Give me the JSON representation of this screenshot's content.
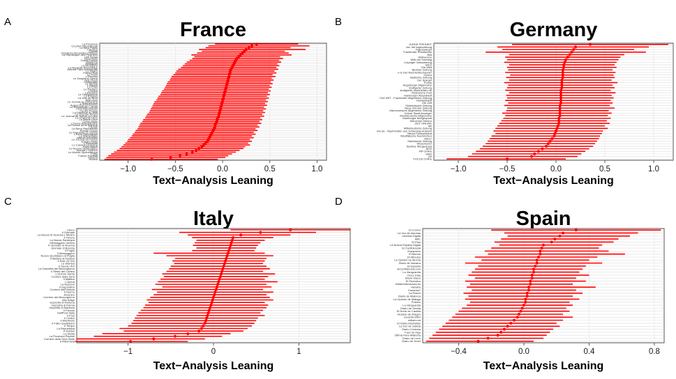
{
  "chart_data": [
    {
      "panel": "A",
      "title": "France",
      "type": "scatter",
      "xlabel": "Text−Analysis Leaning",
      "xlim": [
        -1.3,
        1.1
      ],
      "xticks": [
        -1.0,
        -0.5,
        0.0,
        0.5,
        1.0
      ],
      "xtick_labels": [
        "−1.0",
        "−0.5",
        "0.0",
        "0.5",
        "1.0"
      ],
      "grid": true,
      "labels": [
        "La Provence",
        "Courrier International",
        "Le Bien Public",
        "Causeur",
        "Capital",
        "Dernières Nouvelles d'Alsace",
        "La République des Pyrénées",
        "Les Echos",
        "Nice-Matin",
        "Ouest-France",
        "Marianne",
        "Mediapart",
        "La Montagne",
        "La Nouvelle République",
        "Journal Paris Normandie",
        "Le Figaro",
        "France Soir",
        "Le Point",
        "L'Express",
        "Le Dauphiné Libéré",
        "Sud Ouest",
        "Challenges",
        "Le Monde",
        "L'Alsace",
        "La Croix",
        "Le Parisien",
        "L'Union",
        "Libération",
        "Le Télégramme",
        "Le Progrès",
        "La Voix du Nord",
        "Midi Libre",
        "Le Journal du Dimanche",
        "L'Indépendant",
        "Aujourd'hui en France",
        "Le Républicain Lorrain",
        "L'Est Républicain",
        "Centre Presse",
        "La Dépêche du Midi",
        "Le Courrier Picard",
        "Le Journal de Saône-et-Loire",
        "La Charente Libre",
        "Le Maine Libre",
        "Corse-Matin",
        "L'Yonne Républicaine",
        "La Presse de la Manche",
        "L'Éclair",
        "Le Berry Républicain",
        "Presse Océan",
        "Le Populaire du Centre",
        "L'Écho Républicain",
        "La Marseillaise",
        "Valeurs Actuelles",
        "Le Journal du Centre",
        "Vosges Matin",
        "L'Humanité",
        "Le Canard Enchaîné",
        "Paris Match",
        "Le Nouvel Observateur",
        "Journal L'Opinion",
        "Le Monde Diplomatique",
        "L'Obs",
        "France Football",
        "Présent",
        "Rivarol"
      ],
      "points": [
        0.36,
        0.31,
        0.28,
        0.25,
        0.23,
        0.21,
        0.19,
        0.17,
        0.15,
        0.14,
        0.13,
        0.12,
        0.11,
        0.1,
        0.09,
        0.08,
        0.08,
        0.07,
        0.07,
        0.06,
        0.06,
        0.05,
        0.05,
        0.04,
        0.04,
        0.03,
        0.03,
        0.02,
        0.02,
        0.01,
        0.01,
        0.0,
        0.0,
        -0.01,
        -0.01,
        -0.02,
        -0.02,
        -0.03,
        -0.03,
        -0.04,
        -0.04,
        -0.05,
        -0.06,
        -0.06,
        -0.07,
        -0.08,
        -0.08,
        -0.09,
        -0.1,
        -0.11,
        -0.12,
        -0.13,
        -0.14,
        -0.15,
        -0.16,
        -0.18,
        -0.2,
        -0.22,
        -0.25,
        -0.28,
        -0.32,
        -0.38,
        -0.45,
        -0.55,
        -0.75
      ],
      "lower": [
        -0.08,
        -0.15,
        -0.18,
        -0.25,
        -0.22,
        -0.27,
        -0.33,
        -0.3,
        -0.32,
        -0.35,
        -0.38,
        -0.4,
        -0.42,
        -0.44,
        -0.47,
        -0.49,
        -0.5,
        -0.52,
        -0.54,
        -0.55,
        -0.56,
        -0.58,
        -0.59,
        -0.6,
        -0.61,
        -0.62,
        -0.64,
        -0.65,
        -0.66,
        -0.68,
        -0.69,
        -0.7,
        -0.72,
        -0.73,
        -0.74,
        -0.75,
        -0.76,
        -0.77,
        -0.78,
        -0.8,
        -0.81,
        -0.82,
        -0.84,
        -0.85,
        -0.87,
        -0.88,
        -0.89,
        -0.9,
        -0.92,
        -0.93,
        -0.95,
        -0.96,
        -0.98,
        -1.0,
        -1.01,
        -1.03,
        -1.05,
        -1.07,
        -1.09,
        -1.12,
        -1.15,
        -1.18,
        -1.21,
        -1.23,
        -1.25
      ],
      "upper": [
        0.8,
        0.92,
        0.72,
        0.88,
        0.66,
        0.7,
        0.73,
        0.61,
        0.64,
        0.6,
        0.62,
        0.58,
        0.6,
        0.57,
        0.59,
        0.55,
        0.57,
        0.53,
        0.56,
        0.52,
        0.54,
        0.51,
        0.53,
        0.5,
        0.52,
        0.49,
        0.51,
        0.48,
        0.5,
        0.47,
        0.49,
        0.46,
        0.48,
        0.45,
        0.47,
        0.44,
        0.46,
        0.43,
        0.45,
        0.42,
        0.44,
        0.4,
        0.42,
        0.39,
        0.41,
        0.37,
        0.39,
        0.35,
        0.37,
        0.33,
        0.35,
        0.31,
        0.33,
        0.29,
        0.31,
        0.27,
        0.29,
        0.24,
        0.22,
        0.18,
        0.14,
        0.1,
        0.06,
        0.03,
        -0.05
      ]
    },
    {
      "panel": "B",
      "title": "Germany",
      "type": "scatter",
      "xlabel": "Text−Analysis Leaning",
      "xlim": [
        -1.25,
        1.2
      ],
      "xticks": [
        -1.0,
        -0.5,
        0.0,
        0.5,
        1.0
      ],
      "xtick_labels": [
        "−1.0",
        "−0.5",
        "0.0",
        "0.5",
        "1.0"
      ],
      "grid": true,
      "labels": [
        "JUNGE FREIHEIT",
        "taz. die tageszeitung",
        "Tagesspiegel",
        "Frankfurter Rundschau",
        "Bild",
        "Weltwoche",
        "Welt am Sonntag",
        "Leipziger Volkszeitung",
        "BILD",
        "Die Welt",
        "Berliner Zeitung",
        "n-tv Der Nachrichtensender",
        "Cicero",
        "Badische Zeitung",
        "Der Spiegel",
        "Focus",
        "Augsburger Allgemeine",
        "Stuttgarter Zeitung",
        "stuttgarter-nachrichten.de",
        "Rheinische Post",
        "Hamburger Abendblatt",
        "FAZ.NET - Frankfurter Allgemeine Zeitung",
        "Handelsblatt",
        "Die Zeit",
        "Süddeutsche Zeitung",
        "Neue Zürcher Zeitung",
        "Hannoversche Allgemeine Zeitung",
        "Kölner Stadt-Anzeiger",
        "Westdeutsche Allgemeine",
        "Hamburger Morgenpost",
        "Münchner Merkur",
        "ZEIT ONLINE",
        "taz",
        "Mitteldeutsche Zeitung",
        "shz.de - Nachrichten aus Schleswig-Holstein",
        "Neues Deutschland",
        "Westfälische Nachrichten",
        "WELT",
        "Sächsische Zeitung",
        "Weserkurier",
        "Berliner Morgenpost",
        "NOZ",
        "RP Online",
        "WAZ",
        "jW",
        "FOCUS Online"
      ],
      "points": [
        0.35,
        0.2,
        0.18,
        0.16,
        0.14,
        0.12,
        0.1,
        0.09,
        0.08,
        0.08,
        0.07,
        0.07,
        0.07,
        0.07,
        0.06,
        0.06,
        0.06,
        0.06,
        0.05,
        0.05,
        0.05,
        0.05,
        0.05,
        0.05,
        0.04,
        0.04,
        0.04,
        0.04,
        0.04,
        0.03,
        0.03,
        0.03,
        0.02,
        0.01,
        0.0,
        -0.01,
        -0.02,
        -0.04,
        -0.06,
        -0.08,
        -0.1,
        -0.14,
        -0.18,
        -0.22,
        -0.25,
        -0.5
      ],
      "lower": [
        -0.45,
        -0.6,
        -0.55,
        -0.72,
        -0.48,
        -0.52,
        -0.5,
        -0.53,
        -0.48,
        -0.5,
        -0.49,
        -0.52,
        -0.47,
        -0.51,
        -0.48,
        -0.53,
        -0.49,
        -0.5,
        -0.52,
        -0.48,
        -0.51,
        -0.5,
        -0.52,
        -0.49,
        -0.53,
        -0.5,
        -0.51,
        -0.55,
        -0.52,
        -0.54,
        -0.56,
        -0.58,
        -0.6,
        -0.62,
        -0.64,
        -0.62,
        -0.66,
        -0.68,
        -0.7,
        -0.72,
        -0.75,
        -0.78,
        -0.82,
        -0.86,
        -0.9,
        -1.12
      ],
      "upper": [
        1.15,
        0.95,
        0.8,
        0.92,
        0.7,
        0.66,
        0.64,
        0.62,
        0.6,
        0.62,
        0.58,
        0.61,
        0.59,
        0.6,
        0.57,
        0.63,
        0.58,
        0.6,
        0.56,
        0.61,
        0.57,
        0.59,
        0.56,
        0.58,
        0.55,
        0.6,
        0.54,
        0.57,
        0.53,
        0.56,
        0.52,
        0.55,
        0.5,
        0.53,
        0.48,
        0.47,
        0.45,
        0.44,
        0.42,
        0.4,
        0.38,
        0.34,
        0.3,
        0.26,
        0.22,
        0.1
      ]
    },
    {
      "panel": "C",
      "title": "Italy",
      "type": "scatter",
      "xlabel": "Text−Analysis Leaning",
      "xlim": [
        -1.6,
        1.6
      ],
      "xticks": [
        -1,
        0,
        1
      ],
      "xtick_labels": [
        "−1",
        "0",
        "1"
      ],
      "grid": true,
      "labels": [
        "Libero",
        "Il Giornale",
        "La Nuova di Venezia e Mestre",
        "Il Tirreno",
        "La Nuova Sardegna",
        "Messaggero Veneto",
        "Il Giornale di Vicenza",
        "Giornale di Brescia",
        "Il Foglio",
        "Il Messaggero",
        "Nuovo Quotidiano di Puglia",
        "Il Mattino di Padova",
        "Il Sole 24 Ore",
        "La Stampa",
        "Il Secolo XIX",
        "La Gazzetta del Mezzogiorno",
        "Il Resto del Carlino",
        "L'Unione Sarda",
        "Corriere della Sera",
        "Il Mattino",
        "L'Arena",
        "La Nazione",
        "Il Gazzettino",
        "Corriere dell'Umbria",
        "Il Giorno",
        "Avvenire",
        "Corriere del Mezzogiorno",
        "Alto Adige",
        "Gazzetta di Modena",
        "Gazzetta di Parma",
        "Gazzetta di Mantova",
        "Il Piccolo",
        "HuffPost Italia",
        "Il Post",
        "Il Centro",
        "Il Manifesto",
        "Il Fatto Quotidiano",
        "Il Tempo",
        "La Repubblica",
        "Il Dubbio",
        "La Sicilia",
        "La Provincia Pavese",
        "Corriere della Sera Sette",
        "Il Riformista"
      ],
      "points": [
        0.9,
        0.55,
        0.32,
        0.23,
        0.22,
        0.21,
        0.2,
        0.19,
        0.18,
        0.17,
        0.16,
        0.15,
        0.14,
        0.13,
        0.12,
        0.11,
        0.1,
        0.09,
        0.08,
        0.07,
        0.06,
        0.05,
        0.04,
        0.03,
        0.02,
        0.01,
        0.0,
        -0.01,
        -0.02,
        -0.03,
        -0.04,
        -0.05,
        -0.06,
        -0.07,
        -0.08,
        -0.09,
        -0.1,
        -0.12,
        -0.14,
        -0.17,
        -0.3,
        -0.45,
        -0.7,
        -0.97
      ],
      "lower": [
        0.2,
        -0.4,
        -0.3,
        -0.25,
        -0.2,
        -0.22,
        -0.24,
        -0.2,
        -0.25,
        -0.7,
        -0.55,
        -0.45,
        -0.48,
        -0.46,
        -0.5,
        -0.52,
        -0.55,
        -0.6,
        -0.58,
        -0.62,
        -0.65,
        -0.68,
        -0.6,
        -0.72,
        -0.66,
        -0.7,
        -0.74,
        -0.78,
        -0.76,
        -0.8,
        -0.82,
        -0.85,
        -0.88,
        -0.9,
        -0.92,
        -0.94,
        -0.96,
        -1.0,
        -1.1,
        -1.05,
        -1.3,
        -1.4,
        -1.6,
        -1.62
      ],
      "upper": [
        1.6,
        1.2,
        0.9,
        0.7,
        0.6,
        0.55,
        0.52,
        0.5,
        0.48,
        0.6,
        0.7,
        0.62,
        0.6,
        0.58,
        0.62,
        0.66,
        0.58,
        0.72,
        0.64,
        0.6,
        0.75,
        0.62,
        0.68,
        0.58,
        0.7,
        0.62,
        0.66,
        0.7,
        0.6,
        0.64,
        0.62,
        0.58,
        0.55,
        0.6,
        0.52,
        0.5,
        0.48,
        0.45,
        0.4,
        0.35,
        0.2,
        0.1,
        -0.1,
        -0.3
      ]
    },
    {
      "panel": "D",
      "title": "Spain",
      "type": "scatter",
      "xlabel": "Text−Analysis Leaning",
      "xlim": [
        -0.62,
        0.86
      ],
      "xticks": [
        -0.4,
        0.0,
        0.4,
        0.8
      ],
      "xtick_labels": [
        "−0.4",
        "0.0",
        "0.4",
        "0.8"
      ],
      "grid": true,
      "labels": [
        "El Correo",
        "La Voz de Asturias",
        "Libertad Digital",
        "ABC",
        "El País",
        "La Nueva España Digital",
        "El Confidencial",
        "Expansión",
        "El Mundo",
        "20 Minutos",
        "La Opinión de Murcia",
        "Diario de Navarra",
        "El Español",
        "elConfidencial.com",
        "La Vanguardia",
        "Cinco Días",
        "Diario Vasco",
        "El Periódico",
        "eldiariodenavarra.es",
        "Heraldo",
        "Canarias7",
        "La Razón",
        "Diario de Mallorca",
        "La Opinión de Málaga",
        "Público",
        "La Vanguardia",
        "Diario de Sevilla",
        "El Norte de Castilla",
        "Heraldo de Aragón",
        "Levante-EMV",
        "eldiario.es",
        "El Diario Montañés",
        "La Voz de Galicia",
        "Diario Córdoba",
        "Faro de Vigo",
        "Última Hora Mallorca",
        "Diario de León",
        "Diario de Jerez"
      ],
      "points": [
        0.32,
        0.24,
        0.22,
        0.19,
        0.17,
        0.12,
        0.11,
        0.1,
        0.1,
        0.09,
        0.08,
        0.08,
        0.07,
        0.06,
        0.06,
        0.05,
        0.05,
        0.04,
        0.04,
        0.03,
        0.03,
        0.02,
        0.02,
        0.01,
        0.01,
        0.0,
        -0.01,
        -0.02,
        -0.03,
        -0.04,
        -0.06,
        -0.08,
        -0.1,
        -0.12,
        -0.14,
        -0.16,
        -0.22,
        -0.28
      ],
      "lower": [
        -0.2,
        -0.12,
        -0.1,
        -0.14,
        -0.18,
        -0.15,
        -0.2,
        -0.24,
        -0.22,
        -0.3,
        -0.26,
        -0.36,
        -0.28,
        -0.3,
        -0.32,
        -0.34,
        -0.3,
        -0.36,
        -0.33,
        -0.35,
        -0.32,
        -0.37,
        -0.34,
        -0.36,
        -0.33,
        -0.35,
        -0.38,
        -0.4,
        -0.42,
        -0.44,
        -0.46,
        -0.48,
        -0.5,
        -0.52,
        -0.54,
        -0.56,
        -0.58,
        -0.6
      ],
      "upper": [
        0.84,
        0.7,
        0.65,
        0.58,
        0.55,
        0.48,
        0.46,
        0.52,
        0.62,
        0.45,
        0.4,
        0.48,
        0.38,
        0.36,
        0.34,
        0.4,
        0.32,
        0.38,
        0.3,
        0.44,
        0.32,
        0.36,
        0.3,
        0.34,
        0.28,
        0.3,
        0.26,
        0.28,
        0.24,
        0.3,
        0.24,
        0.2,
        0.22,
        0.18,
        0.16,
        0.14,
        0.12,
        0.06
      ]
    }
  ]
}
